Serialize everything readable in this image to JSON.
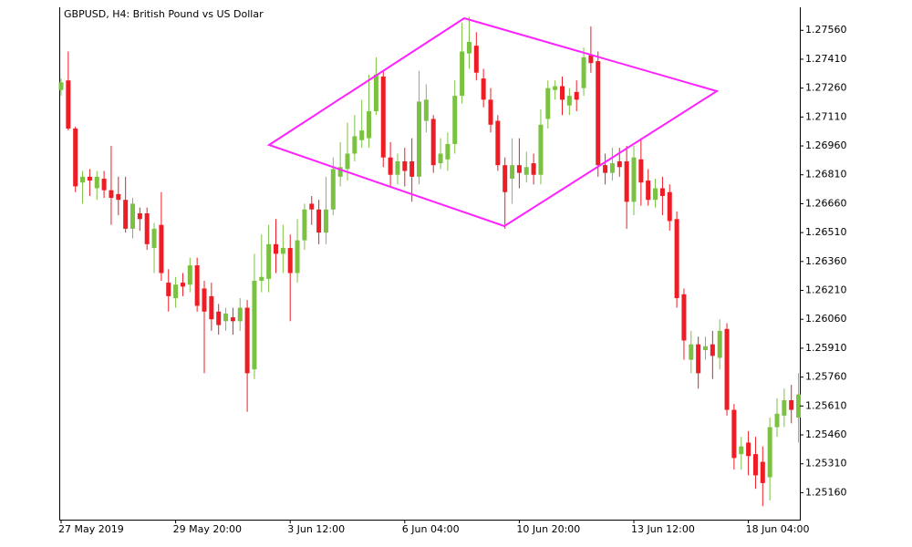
{
  "chart_data": {
    "type": "candlestick",
    "title": "GBPUSD, H4:  British Pound vs US Dollar",
    "up_color": "#7cc242",
    "down_color": "#ee1c25",
    "categories": [
      "27 May 2019",
      null,
      null,
      null,
      null,
      null,
      null,
      null,
      null,
      null,
      null,
      null,
      null,
      null,
      null,
      null,
      "29 May 20:00",
      null,
      null,
      null,
      null,
      null,
      null,
      null,
      null,
      null,
      null,
      null,
      null,
      null,
      null,
      null,
      "3 Jun 12:00",
      null,
      null,
      null,
      null,
      null,
      null,
      null,
      null,
      null,
      null,
      null,
      null,
      null,
      null,
      null,
      "6 Jun 04:00",
      null,
      null,
      null,
      null,
      null,
      null,
      null,
      null,
      null,
      null,
      null,
      null,
      null,
      null,
      null,
      "10 Jun 20:00",
      null,
      null,
      null,
      null,
      null,
      null,
      null,
      null,
      null,
      null,
      null,
      null,
      null,
      null,
      null,
      "13 Jun 12:00",
      null,
      null,
      null,
      null,
      null,
      null,
      null,
      null,
      null,
      null,
      null,
      null,
      null,
      null,
      null,
      "18 Jun 04:00",
      null,
      null,
      null,
      null,
      null,
      null,
      null
    ],
    "open": [
      1.2725,
      1.273,
      1.2705,
      1.2677,
      1.268,
      1.2674,
      1.2679,
      1.2673,
      1.2671,
      1.2668,
      1.2653,
      1.2661,
      1.2661,
      1.2643,
      1.2655,
      1.2625,
      1.2617,
      1.2625,
      1.2624,
      1.2634,
      1.2622,
      1.2618,
      1.261,
      1.2605,
      1.2607,
      1.2605,
      1.2612,
      1.258,
      1.2626,
      1.2627,
      1.2645,
      1.264,
      1.2643,
      1.263,
      1.2647,
      1.2666,
      1.2663,
      1.2651,
      1.2663,
      1.268,
      1.2684,
      1.2692,
      1.2699,
      1.27,
      1.2714,
      1.2732,
      1.269,
      1.2681,
      1.2688,
      1.2688,
      1.268,
      1.2709,
      1.271,
      1.2687,
      1.2689,
      1.2697,
      1.2722,
      1.2744,
      1.2748,
      1.2731,
      1.272,
      1.2709,
      1.2686,
      1.2679,
      1.2686,
      1.2681,
      1.2687,
      1.2681,
      1.271,
      1.2725,
      1.2727,
      1.2717,
      1.2724,
      1.2726,
      1.2743,
      1.274,
      1.2686,
      1.2682,
      1.2688,
      1.2688,
      1.2667,
      1.2689,
      1.2678,
      1.2668,
      1.2674,
      1.2672,
      1.2658,
      1.2619,
      1.2585,
      1.2593,
      1.259,
      1.2593,
      1.2586,
      1.2601,
      1.2559,
      1.2536,
      1.2542,
      1.2536,
      1.2532,
      1.2524,
      1.255,
      1.2556,
      1.2564,
      1.2555
    ],
    "high": [
      1.2731,
      1.2745,
      1.2706,
      1.2683,
      1.2684,
      1.2683,
      1.2683,
      1.2696,
      1.268,
      1.268,
      1.2669,
      1.2664,
      1.2664,
      1.2656,
      1.2672,
      1.2632,
      1.2628,
      1.263,
      1.2638,
      1.2638,
      1.2626,
      1.2625,
      1.2614,
      1.2612,
      1.2612,
      1.2617,
      1.2616,
      1.264,
      1.265,
      1.2655,
      1.2658,
      1.2655,
      1.265,
      1.2658,
      1.2666,
      1.267,
      1.2668,
      1.268,
      1.269,
      1.2698,
      1.2708,
      1.2712,
      1.272,
      1.2733,
      1.2742,
      1.2735,
      1.2698,
      1.2692,
      1.2695,
      1.27,
      1.2735,
      1.2728,
      1.2712,
      1.27,
      1.2703,
      1.273,
      1.276,
      1.2763,
      1.2755,
      1.2736,
      1.2726,
      1.2712,
      1.269,
      1.27,
      1.27,
      1.2693,
      1.2692,
      1.2715,
      1.273,
      1.273,
      1.2732,
      1.2726,
      1.273,
      1.2747,
      1.2758,
      1.2745,
      1.2692,
      1.2695,
      1.2695,
      1.2696,
      1.2696,
      1.27,
      1.2684,
      1.2679,
      1.268,
      1.2676,
      1.2662,
      1.2622,
      1.26,
      1.2597,
      1.2597,
      1.26,
      1.2606,
      1.2604,
      1.2562,
      1.2545,
      1.2548,
      1.2545,
      1.254,
      1.2555,
      1.2565,
      1.257,
      1.2572,
      1.2578
    ],
    "low": [
      1.2722,
      1.2704,
      1.2672,
      1.2666,
      1.267,
      1.2668,
      1.2669,
      1.2655,
      1.266,
      1.2651,
      1.2648,
      1.2652,
      1.2642,
      1.263,
      1.2626,
      1.261,
      1.2612,
      1.2618,
      1.262,
      1.261,
      1.2578,
      1.26,
      1.2598,
      1.26,
      1.2598,
      1.26,
      1.2558,
      1.2575,
      1.262,
      1.262,
      1.263,
      1.263,
      1.2605,
      1.2625,
      1.2642,
      1.2655,
      1.2645,
      1.2645,
      1.266,
      1.2675,
      1.2678,
      1.2688,
      1.2695,
      1.2695,
      1.2712,
      1.2685,
      1.2675,
      1.2676,
      1.2675,
      1.2667,
      1.2676,
      1.2703,
      1.2682,
      1.2684,
      1.2683,
      1.2692,
      1.2718,
      1.2736,
      1.273,
      1.2716,
      1.2703,
      1.2683,
      1.2653,
      1.2666,
      1.2674,
      1.2677,
      1.2676,
      1.2676,
      1.2705,
      1.272,
      1.2712,
      1.2712,
      1.2714,
      1.2722,
      1.2734,
      1.268,
      1.2676,
      1.2678,
      1.268,
      1.2653,
      1.266,
      1.2665,
      1.2665,
      1.2664,
      1.266,
      1.2652,
      1.2612,
      1.2585,
      1.2578,
      1.257,
      1.2585,
      1.2575,
      1.258,
      1.2556,
      1.2528,
      1.2528,
      1.2525,
      1.2518,
      1.2509,
      1.2512,
      1.2545,
      1.255,
      1.2552,
      1.2542
    ],
    "close": [
      1.2729,
      1.2705,
      1.2675,
      1.268,
      1.2678,
      1.268,
      1.2673,
      1.2669,
      1.2668,
      1.2653,
      1.2666,
      1.2658,
      1.2645,
      1.2653,
      1.263,
      1.2618,
      1.2624,
      1.2623,
      1.2634,
      1.2613,
      1.261,
      1.2606,
      1.2603,
      1.2609,
      1.2605,
      1.2612,
      1.2578,
      1.2626,
      1.2628,
      1.2645,
      1.264,
      1.2643,
      1.263,
      1.2647,
      1.2663,
      1.2663,
      1.2651,
      1.2663,
      1.2684,
      1.2685,
      1.2692,
      1.2701,
      1.2704,
      1.2714,
      1.2733,
      1.269,
      1.2681,
      1.2688,
      1.2683,
      1.268,
      1.2719,
      1.272,
      1.2686,
      1.2692,
      1.2697,
      1.2722,
      1.2745,
      1.275,
      1.2734,
      1.272,
      1.2707,
      1.2686,
      1.2672,
      1.2686,
      1.2682,
      1.2685,
      1.2681,
      1.2707,
      1.2726,
      1.2727,
      1.272,
      1.2722,
      1.272,
      1.2742,
      1.2739,
      1.2686,
      1.2682,
      1.2687,
      1.2685,
      1.2667,
      1.269,
      1.2677,
      1.2668,
      1.2674,
      1.267,
      1.2657,
      1.2617,
      1.2595,
      1.2593,
      1.2578,
      1.2592,
      1.2587,
      1.26,
      1.2559,
      1.2534,
      1.254,
      1.2535,
      1.2525,
      1.2521,
      1.255,
      1.2557,
      1.2564,
      1.2559,
      1.2567
    ],
    "ylim": [
      1.2502,
      1.2767
    ],
    "yticks": [
      {
        "value": 1.2516,
        "label": "1.25160"
      },
      {
        "value": 1.2531,
        "label": "1.25310"
      },
      {
        "value": 1.2546,
        "label": "1.25460"
      },
      {
        "value": 1.2561,
        "label": "1.25610"
      },
      {
        "value": 1.2576,
        "label": "1.25760"
      },
      {
        "value": 1.2591,
        "label": "1.25910"
      },
      {
        "value": 1.2606,
        "label": "1.26060"
      },
      {
        "value": 1.2621,
        "label": "1.26210"
      },
      {
        "value": 1.2636,
        "label": "1.26360"
      },
      {
        "value": 1.2651,
        "label": "1.26510"
      },
      {
        "value": 1.2666,
        "label": "1.26660"
      },
      {
        "value": 1.2681,
        "label": "1.26810"
      },
      {
        "value": 1.2696,
        "label": "1.26960"
      },
      {
        "value": 1.2711,
        "label": "1.27110"
      },
      {
        "value": 1.2726,
        "label": "1.27260"
      },
      {
        "value": 1.2741,
        "label": "1.27410"
      },
      {
        "value": 1.2756,
        "label": "1.27560"
      }
    ]
  }
}
